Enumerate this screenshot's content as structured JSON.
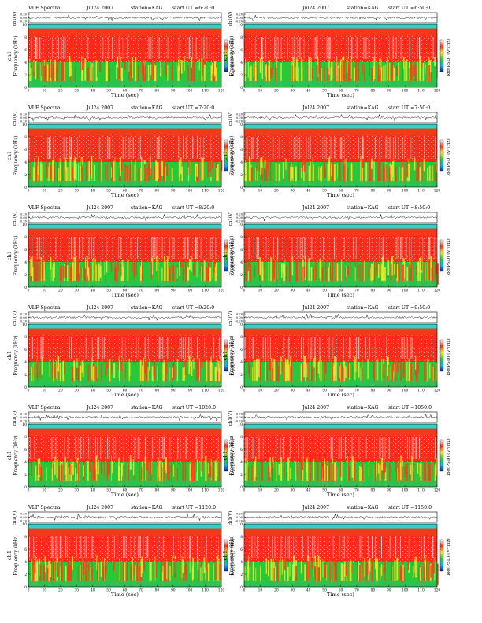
{
  "header": {
    "title": "VLF Spectra",
    "date": "Jul24 2007",
    "station": "station=KAG",
    "start_prefix": "start  UT ="
  },
  "axes": {
    "time_label": "Time (sec)",
    "freq_label": "Frequency (kHz)",
    "ch_label": "ch1",
    "trace_label": "ch1(V)",
    "cbar_label": "log(PSD) (V²/Hz)"
  },
  "chart_data": [
    {
      "panel": 1,
      "type": "heatmap",
      "start_ut": "6:20:0",
      "x_range": [
        0,
        120
      ],
      "y_range_khz": [
        0,
        10
      ],
      "x_ticks": [
        0,
        10,
        20,
        30,
        40,
        50,
        60,
        70,
        80,
        90,
        100,
        110,
        120
      ],
      "y_ticks": [
        0,
        2,
        4,
        6,
        8,
        10
      ],
      "trace_ticks": [
        "0.20",
        "0.00",
        "-0.20"
      ],
      "colorbar": [
        "blue",
        "cyan",
        "green",
        "yellow",
        "red",
        "white"
      ]
    },
    {
      "panel": 2,
      "type": "heatmap",
      "start_ut": "6:50:0",
      "x_range": [
        0,
        120
      ],
      "y_range_khz": [
        0,
        10
      ],
      "x_ticks": [
        0,
        10,
        20,
        30,
        40,
        50,
        60,
        70,
        80,
        90,
        100,
        110,
        120
      ],
      "y_ticks": [
        0,
        2,
        4,
        6,
        8,
        10
      ],
      "trace_ticks": [
        "0.20",
        "0.00",
        "-0.20"
      ],
      "colorbar": [
        "blue",
        "cyan",
        "green",
        "yellow",
        "red",
        "white"
      ]
    },
    {
      "panel": 3,
      "type": "heatmap",
      "start_ut": "7:20:0",
      "x_range": [
        0,
        120
      ],
      "y_range_khz": [
        0,
        10
      ],
      "x_ticks": [
        0,
        10,
        20,
        30,
        40,
        50,
        60,
        70,
        80,
        90,
        100,
        110,
        120
      ],
      "y_ticks": [
        0,
        2,
        4,
        6,
        8,
        10
      ],
      "trace_ticks": [
        "0.20",
        "0.00",
        "-0.20"
      ],
      "colorbar": [
        "blue",
        "cyan",
        "green",
        "yellow",
        "red",
        "white"
      ]
    },
    {
      "panel": 4,
      "type": "heatmap",
      "start_ut": "7:50:0",
      "x_range": [
        0,
        120
      ],
      "y_range_khz": [
        0,
        10
      ],
      "x_ticks": [
        0,
        10,
        20,
        30,
        40,
        50,
        60,
        70,
        80,
        90,
        100,
        110,
        120
      ],
      "y_ticks": [
        0,
        2,
        4,
        6,
        8,
        10
      ],
      "trace_ticks": [
        "0.20",
        "0.00",
        "-0.20"
      ],
      "colorbar": [
        "blue",
        "cyan",
        "green",
        "yellow",
        "red",
        "white"
      ]
    },
    {
      "panel": 5,
      "type": "heatmap",
      "start_ut": "8:20:0",
      "x_range": [
        0,
        120
      ],
      "y_range_khz": [
        0,
        10
      ],
      "x_ticks": [
        0,
        10,
        20,
        30,
        40,
        50,
        60,
        70,
        80,
        90,
        100,
        110,
        120
      ],
      "y_ticks": [
        0,
        2,
        4,
        6,
        8,
        10
      ],
      "trace_ticks": [
        "0.20",
        "0.00",
        "-0.20"
      ],
      "colorbar": [
        "blue",
        "cyan",
        "green",
        "yellow",
        "red",
        "white"
      ]
    },
    {
      "panel": 6,
      "type": "heatmap",
      "start_ut": "8:50:0",
      "x_range": [
        0,
        120
      ],
      "y_range_khz": [
        0,
        10
      ],
      "x_ticks": [
        0,
        10,
        20,
        30,
        40,
        50,
        60,
        70,
        80,
        90,
        100,
        110,
        120
      ],
      "y_ticks": [
        0,
        2,
        4,
        6,
        8,
        10
      ],
      "trace_ticks": [
        "0.20",
        "0.00",
        "-0.20"
      ],
      "colorbar": [
        "blue",
        "cyan",
        "green",
        "yellow",
        "red",
        "white"
      ]
    },
    {
      "panel": 7,
      "type": "heatmap",
      "start_ut": "9:20:0",
      "x_range": [
        0,
        120
      ],
      "y_range_khz": [
        0,
        10
      ],
      "x_ticks": [
        0,
        10,
        20,
        30,
        40,
        50,
        60,
        70,
        80,
        90,
        100,
        110,
        120
      ],
      "y_ticks": [
        0,
        2,
        4,
        6,
        8,
        10
      ],
      "trace_ticks": [
        "0.20",
        "0.00",
        "-0.20"
      ],
      "colorbar": [
        "blue",
        "cyan",
        "green",
        "yellow",
        "red",
        "white"
      ]
    },
    {
      "panel": 8,
      "type": "heatmap",
      "start_ut": "9:50:0",
      "x_range": [
        0,
        120
      ],
      "y_range_khz": [
        0,
        10
      ],
      "x_ticks": [
        0,
        10,
        20,
        30,
        40,
        50,
        60,
        70,
        80,
        90,
        100,
        110,
        120
      ],
      "y_ticks": [
        0,
        2,
        4,
        6,
        8,
        10
      ],
      "trace_ticks": [
        "0.20",
        "0.00",
        "-0.20"
      ],
      "colorbar": [
        "blue",
        "cyan",
        "green",
        "yellow",
        "red",
        "white"
      ]
    },
    {
      "panel": 9,
      "type": "heatmap",
      "start_ut": "1020:0",
      "x_range": [
        0,
        120
      ],
      "y_range_khz": [
        0,
        10
      ],
      "x_ticks": [
        0,
        10,
        20,
        30,
        40,
        50,
        60,
        70,
        80,
        90,
        100,
        110,
        120
      ],
      "y_ticks": [
        0,
        2,
        4,
        6,
        8,
        10
      ],
      "trace_ticks": [
        "0.20",
        "0.00",
        "-0.20"
      ],
      "colorbar": [
        "blue",
        "cyan",
        "green",
        "yellow",
        "red",
        "white"
      ]
    },
    {
      "panel": 10,
      "type": "heatmap",
      "start_ut": "1050:0",
      "x_range": [
        0,
        120
      ],
      "y_range_khz": [
        0,
        10
      ],
      "x_ticks": [
        0,
        10,
        20,
        30,
        40,
        50,
        60,
        70,
        80,
        90,
        100,
        110,
        120
      ],
      "y_ticks": [
        0,
        2,
        4,
        6,
        8,
        10
      ],
      "trace_ticks": [
        "0.20",
        "0.00",
        "-0.20"
      ],
      "colorbar": [
        "blue",
        "cyan",
        "green",
        "yellow",
        "red",
        "white"
      ]
    },
    {
      "panel": 11,
      "type": "heatmap",
      "start_ut": "1120:0",
      "x_range": [
        0,
        120
      ],
      "y_range_khz": [
        0,
        10
      ],
      "x_ticks": [
        0,
        10,
        20,
        30,
        40,
        50,
        60,
        70,
        80,
        90,
        100,
        110,
        120
      ],
      "y_ticks": [
        0,
        2,
        4,
        6,
        8,
        10
      ],
      "trace_ticks": [
        "0.20",
        "0.00",
        "-0.20"
      ],
      "colorbar": [
        "blue",
        "cyan",
        "green",
        "yellow",
        "red",
        "white"
      ]
    },
    {
      "panel": 12,
      "type": "heatmap",
      "start_ut": "1150:0",
      "x_range": [
        0,
        120
      ],
      "y_range_khz": [
        0,
        10
      ],
      "x_ticks": [
        0,
        10,
        20,
        30,
        40,
        50,
        60,
        70,
        80,
        90,
        100,
        110,
        120
      ],
      "y_ticks": [
        0,
        2,
        4,
        6,
        8,
        10
      ],
      "trace_ticks": [
        "0.20",
        "0.00",
        "-0.20"
      ],
      "colorbar": [
        "blue",
        "cyan",
        "green",
        "yellow",
        "red",
        "white"
      ]
    }
  ]
}
